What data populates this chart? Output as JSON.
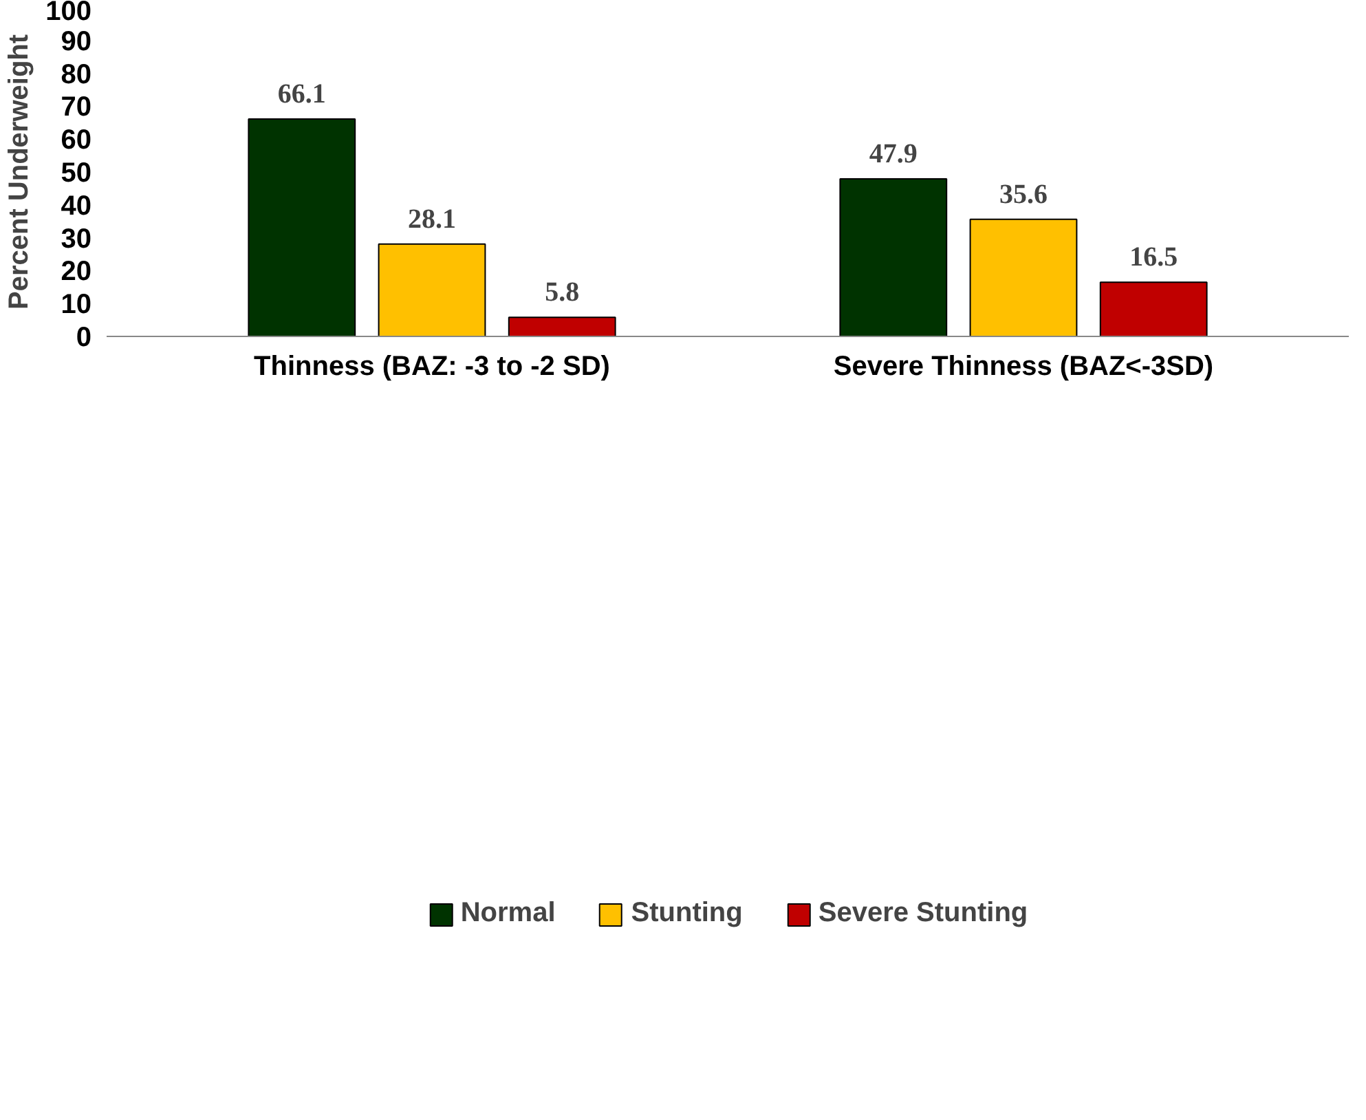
{
  "chart_data": {
    "type": "bar",
    "ylabel": "Percent Underweight",
    "categories": [
      "Thinness (BAZ: -3 to -2 SD)",
      "Severe Thinness (BAZ<-3SD)"
    ],
    "series": [
      {
        "name": "Normal",
        "color": "#003300",
        "values": [
          66.1,
          47.9
        ]
      },
      {
        "name": "Stunting",
        "color": "#ffc000",
        "values": [
          28.1,
          35.6
        ]
      },
      {
        "name": "Severe Stunting",
        "color": "#c00000",
        "values": [
          5.8,
          16.5
        ]
      }
    ],
    "ylim": [
      0,
      100
    ],
    "yticks": [
      0,
      10,
      20,
      30,
      40,
      50,
      60,
      70,
      80,
      90,
      100
    ],
    "data_labels": true,
    "legend": "bottom",
    "grid": false
  }
}
